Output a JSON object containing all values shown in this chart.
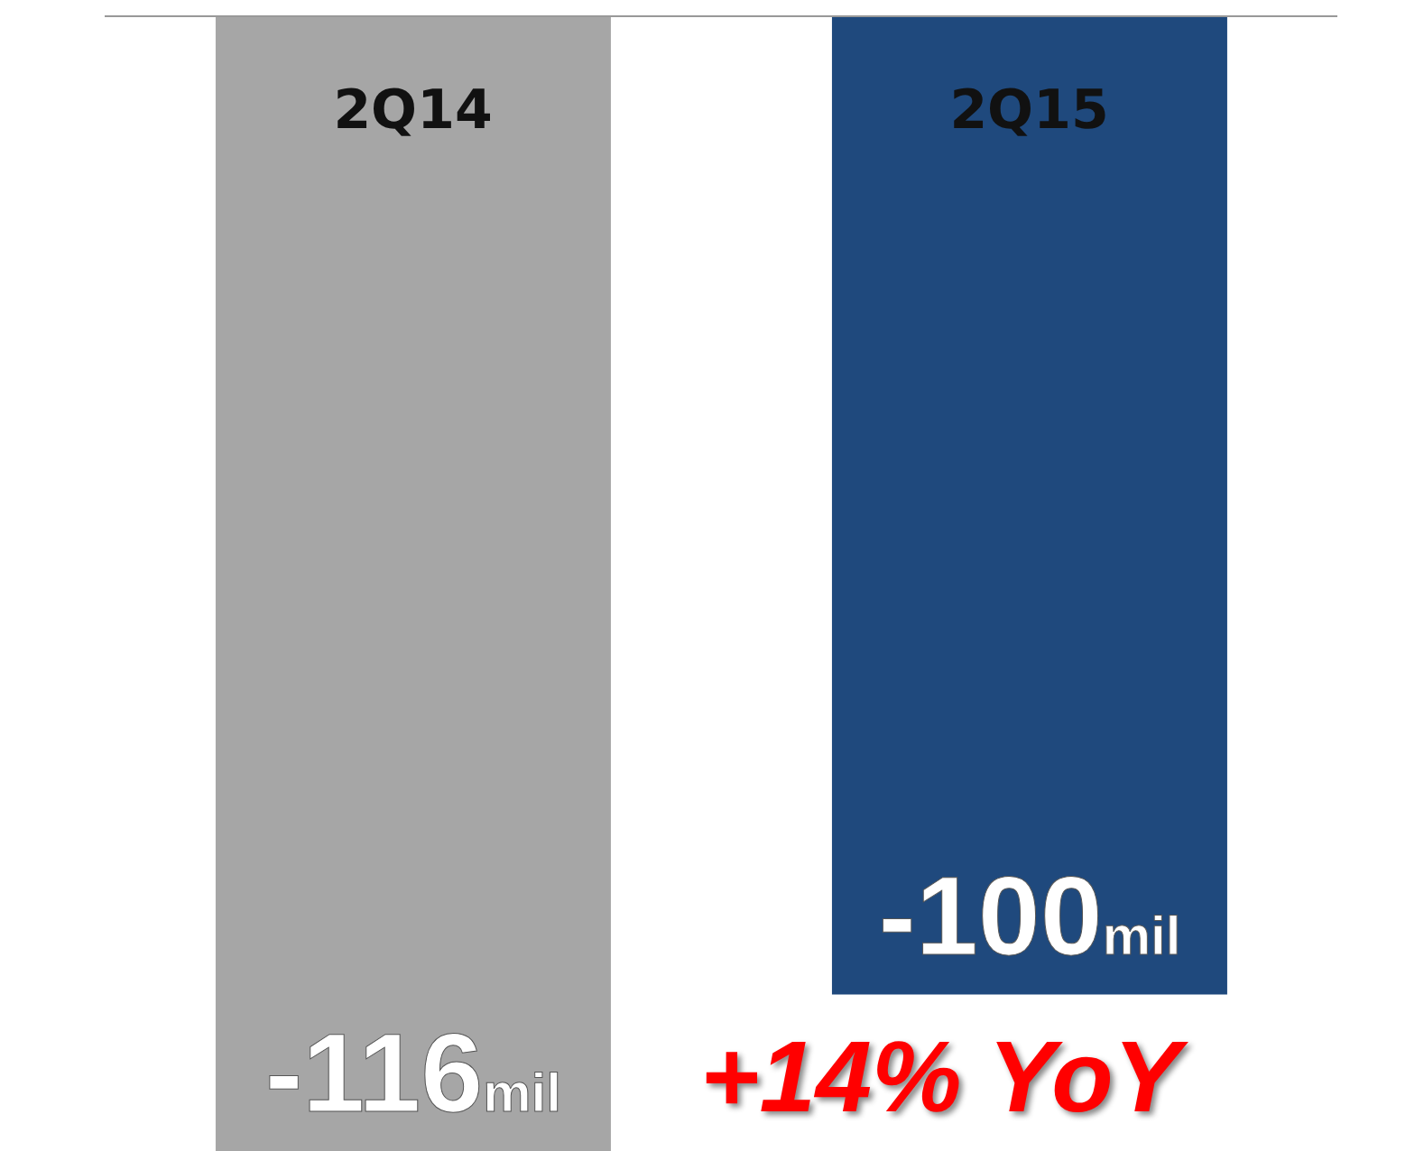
{
  "chart_data": {
    "type": "bar",
    "categories": [
      "2Q14",
      "2Q15"
    ],
    "values": [
      -116,
      -100
    ],
    "colors": [
      "#a6a6a6",
      "#1f497d"
    ],
    "value_labels": [
      "-116mil",
      "-100mil"
    ],
    "annotations": [
      "+14% YoY"
    ]
  }
}
